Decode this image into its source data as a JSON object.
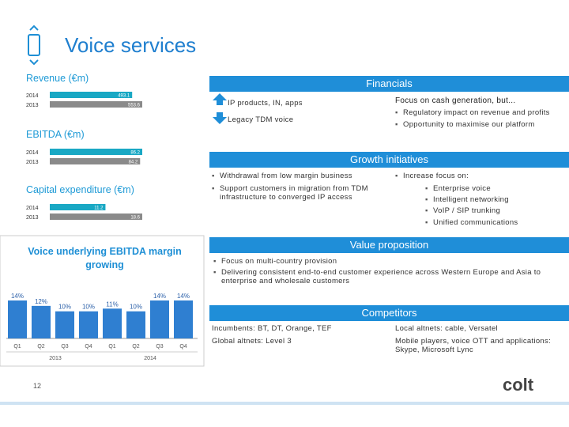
{
  "header": {
    "title": "Voice services"
  },
  "revenue": {
    "title": "Revenue (€m)",
    "rows": [
      {
        "year": "2014",
        "value": 493.1
      },
      {
        "year": "2013",
        "value": 553.6
      }
    ]
  },
  "ebitda": {
    "title": "EBITDA (€m)",
    "rows": [
      {
        "year": "2014",
        "value": 86.2
      },
      {
        "year": "2013",
        "value": 84.2
      }
    ]
  },
  "capex": {
    "title": "Capital expenditure (€m)",
    "rows": [
      {
        "year": "2014",
        "value": 11.2
      },
      {
        "year": "2013",
        "value": 18.6
      }
    ]
  },
  "margin_chart": {
    "type": "bar",
    "title": "Voice underlying EBITDA margin growing",
    "categories": [
      "Q1",
      "Q2",
      "Q3",
      "Q4",
      "Q1",
      "Q2",
      "Q3",
      "Q4"
    ],
    "groups": [
      "2013",
      "2014"
    ],
    "values": [
      14,
      12,
      10,
      10,
      11,
      10,
      14,
      14
    ],
    "value_labels": [
      "14%",
      "12%",
      "10%",
      "10%",
      "11%",
      "10%",
      "14%",
      "14%"
    ],
    "color": "#2f7fd1"
  },
  "financials": {
    "title": "Financials",
    "up": "IP products, IN, apps",
    "down": "Legacy TDM voice",
    "focus": "Focus on cash generation, but...",
    "bullets": [
      "Regulatory impact on revenue and profits",
      "Opportunity to maximise our platform"
    ]
  },
  "growth": {
    "title": "Growth initiatives",
    "left": [
      "Withdrawal from low margin business",
      "Support customers in migration from TDM infrastructure to converged IP access"
    ],
    "right_intro": "Increase focus on:",
    "right": [
      "Enterprise voice",
      "Intelligent networking",
      "VoIP / SIP trunking",
      "Unified communications"
    ]
  },
  "value_proposition": {
    "title": "Value proposition",
    "bullets": [
      "Focus on multi-country provision",
      "Delivering consistent end-to-end customer experience across Western Europe and Asia to enterprise and wholesale customers"
    ]
  },
  "competitors": {
    "title": "Competitors",
    "items": [
      "Incumbents: BT, DT, Orange, TEF",
      "Local altnets: cable, Versatel",
      "Global altnets: Level 3",
      "Mobile players, voice OTT and applications: Skype, Microsoft Lync"
    ]
  },
  "footer": {
    "page": "12",
    "logo": "colt"
  }
}
